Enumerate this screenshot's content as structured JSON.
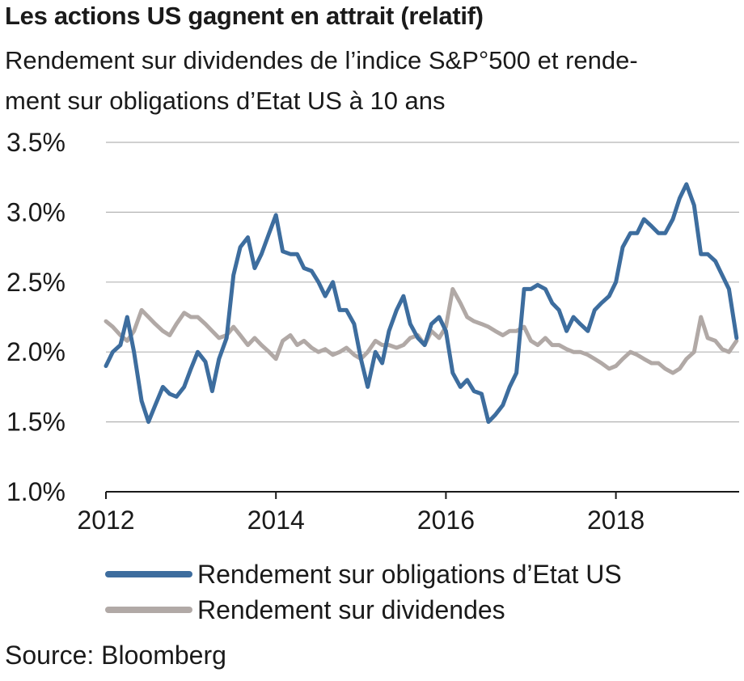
{
  "title": "Les actions US gagnent en attrait (relatif)",
  "subtitle_lines": [
    "Rendement sur dividendes de l’indice S&P°500 et rende-",
    "ment sur obligations d’Etat US à 10 ans"
  ],
  "source": "Source: Bloomberg",
  "colors": {
    "treasury": "#3d6d9e",
    "dividend": "#b1a9a6",
    "grid": "#b4b4b4",
    "axis": "#1a1a1a"
  },
  "chart_data": {
    "type": "line",
    "title": "Les actions US gagnent en attrait (relatif)",
    "xlim": [
      2012.0,
      2019.45
    ],
    "ylim": [
      1.0,
      3.5
    ],
    "x_ticks": [
      2012,
      2014,
      2016,
      2018
    ],
    "x_tick_labels": [
      "2012",
      "2014",
      "2016",
      "2018"
    ],
    "y_ticks": [
      1.0,
      1.5,
      2.0,
      2.5,
      3.0,
      3.5
    ],
    "y_tick_labels": [
      "1.0%",
      "1.5%",
      "2.0%",
      "2.5%",
      "3.0%",
      "3.5%"
    ],
    "grid": "horizontal",
    "legend_position": "bottom",
    "series": [
      {
        "name": "Rendement sur obligations d’Etat US",
        "color": "#3d6d9e",
        "x": [
          2012.0,
          2012.08,
          2012.17,
          2012.25,
          2012.33,
          2012.42,
          2012.5,
          2012.58,
          2012.67,
          2012.75,
          2012.83,
          2012.92,
          2013.0,
          2013.08,
          2013.17,
          2013.25,
          2013.33,
          2013.42,
          2013.5,
          2013.58,
          2013.67,
          2013.75,
          2013.83,
          2013.92,
          2014.0,
          2014.08,
          2014.17,
          2014.25,
          2014.33,
          2014.42,
          2014.5,
          2014.58,
          2014.67,
          2014.75,
          2014.83,
          2014.92,
          2015.0,
          2015.08,
          2015.17,
          2015.25,
          2015.33,
          2015.42,
          2015.5,
          2015.58,
          2015.67,
          2015.75,
          2015.83,
          2015.92,
          2016.0,
          2016.08,
          2016.17,
          2016.25,
          2016.33,
          2016.42,
          2016.5,
          2016.58,
          2016.67,
          2016.75,
          2016.83,
          2016.92,
          2017.0,
          2017.08,
          2017.17,
          2017.25,
          2017.33,
          2017.42,
          2017.5,
          2017.58,
          2017.67,
          2017.75,
          2017.83,
          2017.92,
          2018.0,
          2018.08,
          2018.17,
          2018.25,
          2018.33,
          2018.42,
          2018.5,
          2018.58,
          2018.67,
          2018.75,
          2018.83,
          2018.92,
          2019.0,
          2019.08,
          2019.17,
          2019.25,
          2019.33,
          2019.42
        ],
        "y": [
          1.9,
          2.0,
          2.05,
          2.25,
          2.0,
          1.65,
          1.5,
          1.62,
          1.75,
          1.7,
          1.68,
          1.75,
          1.88,
          2.0,
          1.93,
          1.72,
          1.95,
          2.1,
          2.55,
          2.75,
          2.82,
          2.6,
          2.7,
          2.85,
          2.98,
          2.72,
          2.7,
          2.7,
          2.6,
          2.58,
          2.5,
          2.4,
          2.5,
          2.3,
          2.3,
          2.2,
          1.95,
          1.75,
          2.0,
          1.92,
          2.15,
          2.3,
          2.4,
          2.2,
          2.1,
          2.05,
          2.2,
          2.25,
          2.15,
          1.85,
          1.75,
          1.8,
          1.72,
          1.7,
          1.5,
          1.55,
          1.62,
          1.75,
          1.85,
          2.45,
          2.45,
          2.48,
          2.45,
          2.35,
          2.3,
          2.15,
          2.25,
          2.2,
          2.15,
          2.3,
          2.35,
          2.4,
          2.5,
          2.75,
          2.85,
          2.85,
          2.95,
          2.9,
          2.85,
          2.85,
          2.95,
          3.1,
          3.2,
          3.05,
          2.7,
          2.7,
          2.65,
          2.55,
          2.45,
          2.1
        ]
      },
      {
        "name": "Rendement sur dividendes",
        "color": "#b1a9a6",
        "x": [
          2012.0,
          2012.08,
          2012.17,
          2012.25,
          2012.33,
          2012.42,
          2012.5,
          2012.58,
          2012.67,
          2012.75,
          2012.83,
          2012.92,
          2013.0,
          2013.08,
          2013.17,
          2013.25,
          2013.33,
          2013.42,
          2013.5,
          2013.58,
          2013.67,
          2013.75,
          2013.83,
          2013.92,
          2014.0,
          2014.08,
          2014.17,
          2014.25,
          2014.33,
          2014.42,
          2014.5,
          2014.58,
          2014.67,
          2014.75,
          2014.83,
          2014.92,
          2015.0,
          2015.08,
          2015.17,
          2015.25,
          2015.33,
          2015.42,
          2015.5,
          2015.58,
          2015.67,
          2015.75,
          2015.83,
          2015.92,
          2016.0,
          2016.08,
          2016.17,
          2016.25,
          2016.33,
          2016.42,
          2016.5,
          2016.58,
          2016.67,
          2016.75,
          2016.83,
          2016.92,
          2017.0,
          2017.08,
          2017.17,
          2017.25,
          2017.33,
          2017.42,
          2017.5,
          2017.58,
          2017.67,
          2017.75,
          2017.83,
          2017.92,
          2018.0,
          2018.08,
          2018.17,
          2018.25,
          2018.33,
          2018.42,
          2018.5,
          2018.58,
          2018.67,
          2018.75,
          2018.83,
          2018.92,
          2019.0,
          2019.08,
          2019.17,
          2019.25,
          2019.33,
          2019.42
        ],
        "y": [
          2.22,
          2.18,
          2.12,
          2.08,
          2.15,
          2.3,
          2.25,
          2.2,
          2.15,
          2.12,
          2.2,
          2.28,
          2.25,
          2.25,
          2.2,
          2.15,
          2.1,
          2.12,
          2.18,
          2.12,
          2.05,
          2.1,
          2.05,
          2.0,
          1.95,
          2.08,
          2.12,
          2.05,
          2.08,
          2.03,
          2.0,
          2.02,
          1.98,
          2.0,
          2.03,
          1.98,
          1.95,
          2.0,
          2.08,
          2.05,
          2.05,
          2.03,
          2.05,
          2.1,
          2.12,
          2.05,
          2.15,
          2.1,
          2.18,
          2.45,
          2.35,
          2.25,
          2.22,
          2.2,
          2.18,
          2.15,
          2.12,
          2.15,
          2.15,
          2.18,
          2.08,
          2.05,
          2.1,
          2.05,
          2.05,
          2.02,
          2.0,
          2.0,
          1.98,
          1.95,
          1.92,
          1.88,
          1.9,
          1.95,
          2.0,
          1.98,
          1.95,
          1.92,
          1.92,
          1.88,
          1.85,
          1.88,
          1.95,
          2.0,
          2.25,
          2.1,
          2.08,
          2.02,
          2.0,
          2.08
        ]
      }
    ]
  }
}
